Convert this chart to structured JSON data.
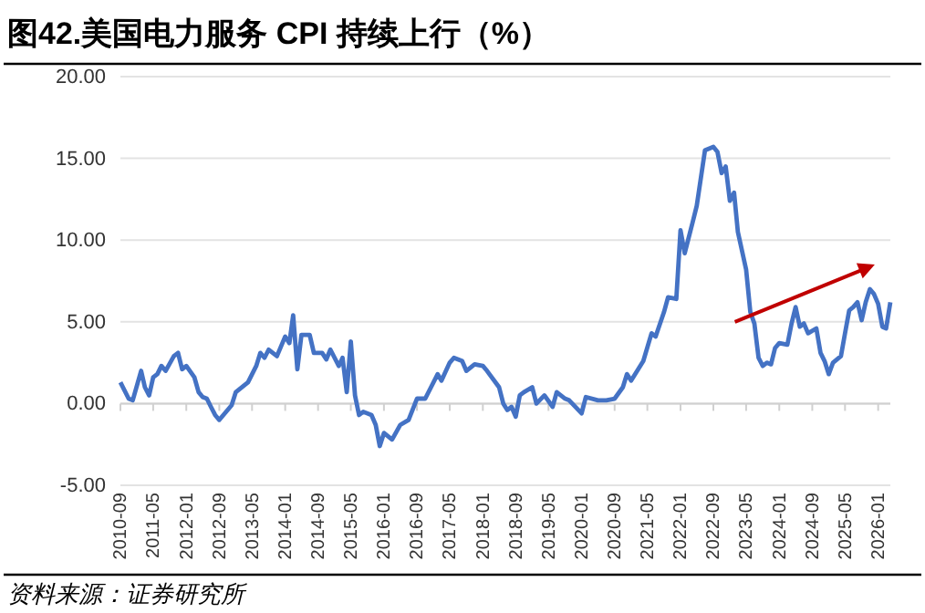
{
  "chart_data": {
    "type": "line",
    "title": "图42.美国电力服务 CPI 持续上行（%）",
    "annotations": [
      "资料来源：证券研究所"
    ],
    "x": [
      "2010-09",
      "2010-11",
      "2010-12",
      "2011-02",
      "2011-03",
      "2011-04",
      "2011-05",
      "2011-06",
      "2011-07",
      "2011-08",
      "2011-10",
      "2011-11",
      "2011-12",
      "2012-01",
      "2012-03",
      "2012-04",
      "2012-05",
      "2012-06",
      "2012-07",
      "2012-08",
      "2012-09",
      "2012-10",
      "2012-12",
      "2013-01",
      "2013-04",
      "2013-06",
      "2013-07",
      "2013-08",
      "2013-09",
      "2013-11",
      "2014-01",
      "2014-02",
      "2014-03",
      "2014-04",
      "2014-05",
      "2014-07",
      "2014-08",
      "2014-10",
      "2014-11",
      "2014-12",
      "2015-02",
      "2015-03",
      "2015-04",
      "2015-05",
      "2015-06",
      "2015-07",
      "2015-08",
      "2015-10",
      "2015-11",
      "2015-12",
      "2016-01",
      "2016-03",
      "2016-05",
      "2016-07",
      "2016-09",
      "2016-11",
      "2017-02",
      "2017-03",
      "2017-05",
      "2017-06",
      "2017-08",
      "2017-09",
      "2017-11",
      "2018-01",
      "2018-02",
      "2018-05",
      "2018-06",
      "2018-07",
      "2018-08",
      "2018-09",
      "2018-10",
      "2018-11",
      "2019-01",
      "2019-02",
      "2019-04",
      "2019-06",
      "2019-07",
      "2019-09",
      "2019-10",
      "2020-01",
      "2020-02",
      "2020-05",
      "2020-07",
      "2020-09",
      "2020-11",
      "2020-12",
      "2021-01",
      "2021-04",
      "2021-06",
      "2021-07",
      "2021-09",
      "2021-10",
      "2021-12",
      "2022-01",
      "2022-02",
      "2022-04",
      "2022-05",
      "2022-07",
      "2022-09",
      "2022-10",
      "2022-11",
      "2022-12",
      "2023-01",
      "2023-02",
      "2023-03",
      "2023-05",
      "2023-06",
      "2023-07",
      "2023-08",
      "2023-09",
      "2023-10",
      "2023-11",
      "2023-12",
      "2024-01",
      "2024-03",
      "2024-04",
      "2024-05",
      "2024-06",
      "2024-07",
      "2024-08",
      "2024-10",
      "2024-11",
      "2024-12",
      "2025-01",
      "2025-02",
      "2025-04",
      "2025-05",
      "2025-06",
      "2025-07",
      "2025-08",
      "2025-09",
      "2025-10",
      "2025-11",
      "2025-12",
      "2026-01",
      "2026-02",
      "2026-03",
      "2026-04"
    ],
    "series": [
      {
        "color": "#4472c4",
        "values": [
          1.3,
          0.3,
          0.2,
          2.0,
          1.0,
          0.5,
          1.6,
          1.8,
          2.3,
          2.0,
          2.9,
          3.1,
          2.1,
          2.3,
          1.6,
          0.7,
          0.4,
          0.3,
          -0.2,
          -0.7,
          -1.0,
          -0.7,
          -0.1,
          0.7,
          1.3,
          2.3,
          3.1,
          2.8,
          3.3,
          2.9,
          4.1,
          3.7,
          5.4,
          2.1,
          4.2,
          4.2,
          3.1,
          3.1,
          2.7,
          3.3,
          2.3,
          2.8,
          0.7,
          3.8,
          0.5,
          -0.7,
          -0.5,
          -0.7,
          -1.3,
          -2.6,
          -1.8,
          -2.2,
          -1.3,
          -1.0,
          0.3,
          0.3,
          1.8,
          1.4,
          2.5,
          2.8,
          2.6,
          2.0,
          2.4,
          2.3,
          2.0,
          1.0,
          0.0,
          -0.4,
          -0.2,
          -0.8,
          0.5,
          0.7,
          1.0,
          0.0,
          0.5,
          -0.2,
          0.7,
          0.3,
          0.2,
          -0.6,
          0.4,
          0.2,
          0.2,
          0.3,
          1.0,
          1.8,
          1.4,
          2.6,
          4.3,
          4.1,
          5.6,
          6.5,
          6.4,
          10.6,
          9.2,
          11.1,
          12.1,
          15.5,
          15.7,
          15.4,
          14.1,
          14.5,
          12.4,
          12.9,
          10.5,
          8.2,
          5.6,
          4.9,
          2.8,
          2.3,
          2.5,
          2.4,
          3.4,
          3.7,
          3.6,
          4.9,
          5.9,
          4.7,
          4.9,
          4.3,
          4.6,
          3.1,
          2.6,
          1.8,
          2.5,
          2.9,
          4.3,
          5.7,
          5.9,
          6.2,
          5.1,
          6.2,
          7.0,
          6.7,
          6.1,
          4.7,
          4.6,
          6.2
        ]
      }
    ],
    "xlim": [
      "2010-09",
      "2026-04"
    ],
    "xticks": [
      "2010-09",
      "2011-05",
      "2012-01",
      "2012-09",
      "2013-05",
      "2014-01",
      "2014-09",
      "2015-05",
      "2016-01",
      "2016-09",
      "2017-05",
      "2018-01",
      "2018-09",
      "2019-05",
      "2020-01",
      "2020-09",
      "2021-05",
      "2022-01",
      "2022-09",
      "2023-05",
      "2024-01",
      "2024-09",
      "2025-05",
      "2026-01"
    ],
    "ylim": [
      -5,
      20
    ],
    "yticks": [
      {
        "value": -5,
        "label": "-5.00"
      },
      {
        "value": 0,
        "label": "0.00"
      },
      {
        "value": 5,
        "label": "5.00"
      },
      {
        "value": 10,
        "label": "10.00"
      },
      {
        "value": 15,
        "label": "15.00"
      },
      {
        "value": 20,
        "label": "20.00"
      }
    ],
    "grid": "y",
    "line_style": "solid",
    "marker": "none"
  }
}
